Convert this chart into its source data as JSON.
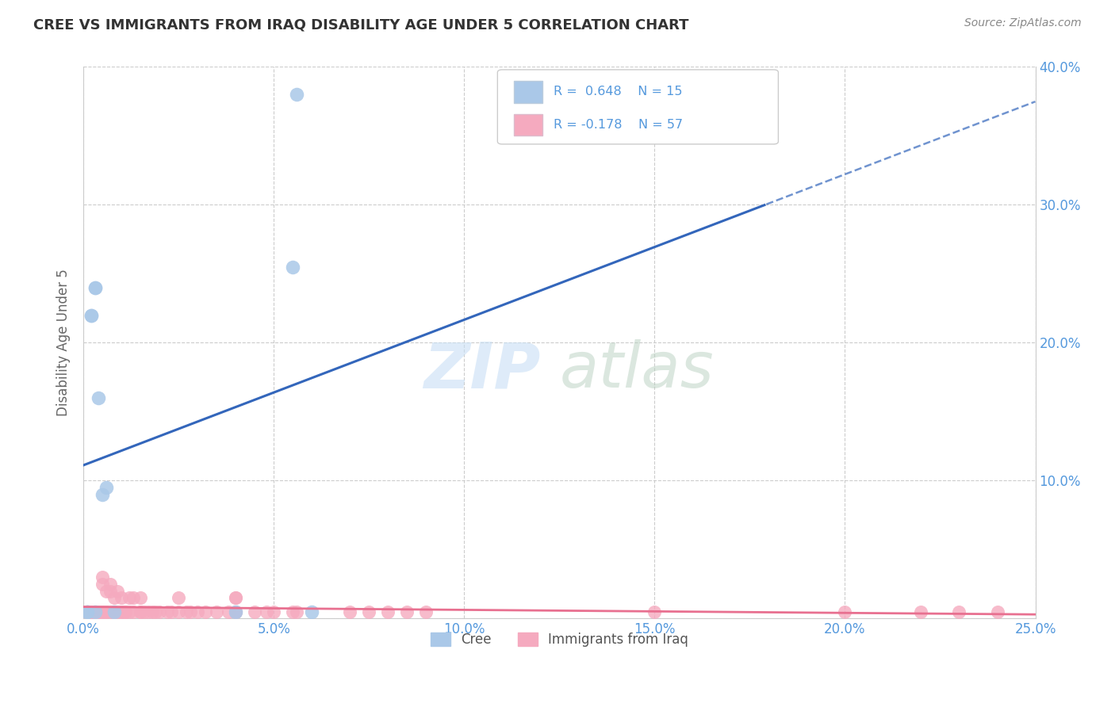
{
  "title": "CREE VS IMMIGRANTS FROM IRAQ DISABILITY AGE UNDER 5 CORRELATION CHART",
  "source": "Source: ZipAtlas.com",
  "ylabel": "Disability Age Under 5",
  "xlim": [
    0.0,
    0.25
  ],
  "ylim": [
    0.0,
    0.4
  ],
  "xticks": [
    0.0,
    0.05,
    0.1,
    0.15,
    0.2,
    0.25
  ],
  "yticks": [
    0.0,
    0.1,
    0.2,
    0.3,
    0.4
  ],
  "xtick_labels": [
    "0.0%",
    "5.0%",
    "10.0%",
    "15.0%",
    "20.0%",
    "25.0%"
  ],
  "ytick_labels_right": [
    "",
    "10.0%",
    "20.0%",
    "30.0%",
    "40.0%"
  ],
  "legend_label1": "Cree",
  "legend_label2": "Immigrants from Iraq",
  "cree_color": "#aac8e8",
  "iraq_color": "#f5aabf",
  "trendline_cree_color": "#3366bb",
  "trendline_iraq_color": "#e87090",
  "background_color": "#ffffff",
  "grid_color": "#cccccc",
  "tick_color": "#5599dd",
  "cree_x": [
    0.001,
    0.001,
    0.002,
    0.002,
    0.003,
    0.003,
    0.003,
    0.004,
    0.005,
    0.006,
    0.008,
    0.04,
    0.055,
    0.056,
    0.06
  ],
  "cree_y": [
    0.005,
    0.005,
    0.22,
    0.22,
    0.24,
    0.24,
    0.005,
    0.16,
    0.09,
    0.095,
    0.005,
    0.005,
    0.255,
    0.38,
    0.005
  ],
  "iraq_x": [
    0.001,
    0.001,
    0.001,
    0.001,
    0.002,
    0.002,
    0.003,
    0.003,
    0.004,
    0.004,
    0.005,
    0.005,
    0.006,
    0.006,
    0.007,
    0.008,
    0.008,
    0.009,
    0.01,
    0.01,
    0.011,
    0.011,
    0.012,
    0.013,
    0.015,
    0.015,
    0.016,
    0.017,
    0.018,
    0.019,
    0.02,
    0.022,
    0.023,
    0.025,
    0.027,
    0.028,
    0.03,
    0.032,
    0.035,
    0.038,
    0.04,
    0.04,
    0.045,
    0.048,
    0.05,
    0.055,
    0.056,
    0.07,
    0.075,
    0.08,
    0.085,
    0.09,
    0.15,
    0.2,
    0.22,
    0.23,
    0.24
  ],
  "iraq_y": [
    0.005,
    0.005,
    0.005,
    0.005,
    0.005,
    0.005,
    0.005,
    0.005,
    0.005,
    0.005,
    0.005,
    0.005,
    0.005,
    0.005,
    0.005,
    0.005,
    0.005,
    0.005,
    0.005,
    0.005,
    0.005,
    0.005,
    0.005,
    0.005,
    0.005,
    0.005,
    0.005,
    0.005,
    0.005,
    0.005,
    0.005,
    0.005,
    0.005,
    0.005,
    0.005,
    0.005,
    0.005,
    0.005,
    0.005,
    0.005,
    0.005,
    0.005,
    0.005,
    0.005,
    0.005,
    0.005,
    0.005,
    0.005,
    0.005,
    0.005,
    0.005,
    0.005,
    0.005,
    0.005,
    0.005,
    0.005,
    0.005
  ],
  "cree_R": 0.648,
  "cree_N": 15,
  "iraq_R": -0.178,
  "iraq_N": 57,
  "iraq_extra_x": [
    0.005,
    0.005,
    0.006,
    0.007,
    0.007,
    0.008,
    0.009,
    0.01,
    0.012,
    0.013,
    0.015,
    0.025,
    0.04,
    0.04
  ],
  "iraq_extra_y": [
    0.025,
    0.03,
    0.02,
    0.025,
    0.02,
    0.015,
    0.02,
    0.015,
    0.015,
    0.015,
    0.015,
    0.015,
    0.015,
    0.015
  ]
}
